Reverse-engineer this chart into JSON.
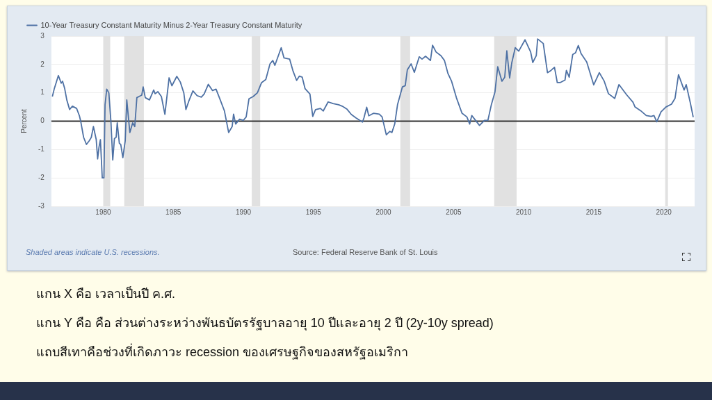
{
  "chart_data": {
    "type": "line",
    "ylabel": "Percent",
    "xlim": [
      1976.3,
      2022.2
    ],
    "xticks": [
      1980,
      1985,
      1990,
      1995,
      2000,
      2005,
      2010,
      2015,
      2020
    ],
    "ylim": [
      -3,
      3
    ],
    "yticks": [
      -3,
      -2,
      -1,
      0,
      1,
      2,
      3
    ],
    "grid": "y",
    "legend": "top left",
    "marker": "none",
    "line_style": "solid",
    "series": [
      {
        "name": "10-Year Treasury Constant Maturity Minus 2-Year Treasury Constant Maturity",
        "color": "#4e71a4",
        "x": [
          1976.37,
          1976.5,
          1976.8,
          1977.0,
          1977.1,
          1977.25,
          1977.4,
          1977.6,
          1977.8,
          1978.1,
          1978.3,
          1978.4,
          1978.6,
          1978.8,
          1979.0,
          1979.15,
          1979.3,
          1979.5,
          1979.6,
          1979.7,
          1979.8,
          1979.93,
          1980.05,
          1980.13,
          1980.25,
          1980.4,
          1980.55,
          1980.68,
          1980.8,
          1980.92,
          1981.0,
          1981.15,
          1981.25,
          1981.4,
          1981.57,
          1981.68,
          1981.9,
          1982.1,
          1982.25,
          1982.4,
          1982.55,
          1982.75,
          1982.85,
          1983.0,
          1983.3,
          1983.6,
          1983.7,
          1983.9,
          1984.15,
          1984.4,
          1984.7,
          1984.9,
          1985.25,
          1985.5,
          1985.75,
          1985.9,
          1986.1,
          1986.4,
          1986.7,
          1987.0,
          1987.2,
          1987.5,
          1987.8,
          1988.05,
          1988.35,
          1988.65,
          1988.95,
          1989.2,
          1989.3,
          1989.45,
          1989.73,
          1990.0,
          1990.2,
          1990.4,
          1990.7,
          1991.0,
          1991.3,
          1991.6,
          1991.9,
          1992.1,
          1992.25,
          1992.7,
          1992.9,
          1993.3,
          1993.55,
          1993.8,
          1994.0,
          1994.2,
          1994.4,
          1994.75,
          1994.95,
          1995.15,
          1995.5,
          1995.7,
          1996.05,
          1996.4,
          1996.8,
          1997.05,
          1997.4,
          1997.7,
          1998.05,
          1998.5,
          1998.6,
          1998.8,
          1998.95,
          1999.3,
          1999.7,
          1999.9,
          2000.2,
          2000.45,
          2000.6,
          2000.8,
          2001.0,
          2001.35,
          2001.55,
          2001.7,
          2001.97,
          2002.2,
          2002.55,
          2002.75,
          2003.0,
          2003.35,
          2003.5,
          2003.75,
          2004.1,
          2004.35,
          2004.6,
          2004.85,
          2005.2,
          2005.6,
          2005.95,
          2006.15,
          2006.3,
          2006.85,
          2007.2,
          2007.45,
          2007.7,
          2007.95,
          2008.15,
          2008.45,
          2008.65,
          2008.8,
          2009.0,
          2009.15,
          2009.4,
          2009.65,
          2010.1,
          2010.5,
          2010.65,
          2010.9,
          2011.0,
          2011.4,
          2011.7,
          2011.95,
          2012.2,
          2012.4,
          2012.6,
          2012.95,
          2013.05,
          2013.25,
          2013.5,
          2013.7,
          2013.9,
          2014.1,
          2014.5,
          2015.0,
          2015.4,
          2015.75,
          2016.05,
          2016.5,
          2016.8,
          2017.35,
          2017.8,
          2017.95,
          2018.35,
          2018.75,
          2019.1,
          2019.3,
          2019.5,
          2019.8,
          2020.15,
          2020.55,
          2020.8,
          2021.05,
          2021.45,
          2021.6,
          2021.9,
          2022.1
        ],
        "values": [
          0.87,
          1.13,
          1.61,
          1.34,
          1.41,
          1.15,
          0.75,
          0.41,
          0.53,
          0.45,
          0.19,
          -0.02,
          -0.57,
          -0.82,
          -0.69,
          -0.57,
          -0.19,
          -0.65,
          -1.33,
          -0.91,
          -0.65,
          -2.0,
          -2.0,
          0.58,
          1.13,
          1.0,
          -0.02,
          -1.37,
          -0.61,
          -0.57,
          -0.06,
          -0.78,
          -0.82,
          -1.29,
          -0.69,
          0.75,
          -0.4,
          -0.06,
          -0.19,
          0.83,
          0.87,
          0.92,
          1.21,
          0.83,
          0.75,
          1.1,
          0.97,
          1.04,
          0.87,
          0.24,
          1.53,
          1.25,
          1.58,
          1.38,
          1.0,
          0.41,
          0.7,
          1.07,
          0.9,
          0.85,
          0.96,
          1.3,
          1.08,
          1.13,
          0.75,
          0.36,
          -0.4,
          -0.19,
          0.25,
          -0.1,
          0.07,
          0.03,
          0.15,
          0.79,
          0.87,
          1.0,
          1.36,
          1.47,
          2.02,
          2.14,
          1.97,
          2.59,
          2.23,
          2.19,
          1.76,
          1.44,
          1.59,
          1.55,
          1.15,
          0.96,
          0.17,
          0.41,
          0.45,
          0.36,
          0.68,
          0.62,
          0.58,
          0.53,
          0.42,
          0.24,
          0.11,
          -0.03,
          0.11,
          0.49,
          0.19,
          0.28,
          0.25,
          0.15,
          -0.48,
          -0.36,
          -0.4,
          -0.1,
          0.58,
          1.21,
          1.25,
          1.81,
          2.02,
          1.72,
          2.27,
          2.19,
          2.29,
          2.14,
          2.68,
          2.44,
          2.31,
          2.14,
          1.68,
          1.42,
          0.83,
          0.28,
          0.15,
          -0.1,
          0.2,
          -0.15,
          0.03,
          0.03,
          0.59,
          1.02,
          1.92,
          1.41,
          1.55,
          2.48,
          1.52,
          2.05,
          2.59,
          2.47,
          2.87,
          2.44,
          2.07,
          2.31,
          2.9,
          2.74,
          1.71,
          1.79,
          1.9,
          1.36,
          1.36,
          1.45,
          1.79,
          1.55,
          2.35,
          2.41,
          2.67,
          2.38,
          2.09,
          1.28,
          1.71,
          1.41,
          0.97,
          0.8,
          1.29,
          0.93,
          0.67,
          0.5,
          0.37,
          0.2,
          0.17,
          0.2,
          -0.02,
          0.33,
          0.5,
          0.6,
          0.8,
          1.64,
          1.1,
          1.29,
          0.63,
          0.14
        ]
      }
    ],
    "ref_lines": [
      {
        "axis": "y",
        "value": 0,
        "color": "#333333"
      }
    ],
    "bands": [
      {
        "axis": "x",
        "from": 1980.0,
        "to": 1980.5,
        "color": "#e1e1e1"
      },
      {
        "axis": "x",
        "from": 1981.5,
        "to": 1982.9,
        "color": "#e1e1e1"
      },
      {
        "axis": "x",
        "from": 1990.6,
        "to": 1991.2,
        "color": "#e1e1e1"
      },
      {
        "axis": "x",
        "from": 2001.2,
        "to": 2001.9,
        "color": "#e1e1e1"
      },
      {
        "axis": "x",
        "from": 2007.9,
        "to": 2009.5,
        "color": "#e1e1e1"
      },
      {
        "axis": "x",
        "from": 2020.1,
        "to": 2020.3,
        "color": "#e1e1e1"
      }
    ],
    "annotations": [
      "Shaded areas indicate U.S. recessions.",
      "Source: Federal Reserve Bank of St. Louis",
      "แกน X คือ เวลาเป็นปี ค.ศ.",
      "แกน Y คือ คือ ส่วนต่างระหว่างพันธบัตรรัฐบาลอายุ  10 ปีและอายุ 2 ปี (2y-10y  spread)",
      "แถบสีเทาคือช่วงที่เกิดภาวะ recession ของเศรษฐกิจของสหรัฐอเมริกา"
    ]
  }
}
